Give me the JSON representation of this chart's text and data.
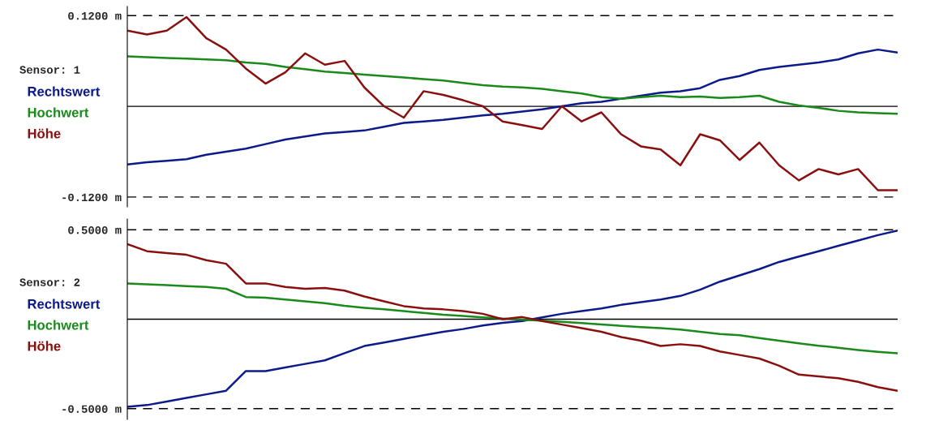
{
  "chart_data": [
    {
      "type": "line",
      "title": "Sensor: 1",
      "categories": [
        null,
        null,
        null,
        null,
        null,
        null,
        null,
        null,
        null,
        null,
        null,
        null,
        null,
        null,
        null,
        null,
        null,
        null,
        null,
        null,
        null,
        null,
        null,
        null,
        null,
        null,
        null,
        null,
        null,
        null,
        null,
        null,
        null,
        null,
        null,
        null,
        null,
        null,
        null,
        null
      ],
      "ylim": [
        -0.133,
        0.132
      ],
      "yticks": [
        {
          "value": -0.12,
          "label": "-0.1200 m"
        },
        {
          "value": 0.12,
          "label": "0.1200 m"
        }
      ],
      "grid": "y",
      "line_style": "solid",
      "legend": "left",
      "ref_lines": [
        {
          "axis": "y",
          "value": 0,
          "color": "#000000",
          "line_style": "solid"
        }
      ],
      "series": [
        {
          "name": "Rechtswert",
          "color": "#0d1a8a",
          "values": [
            -0.077,
            -0.074,
            -0.072,
            -0.07,
            -0.064,
            -0.06,
            -0.056,
            -0.05,
            -0.044,
            -0.04,
            -0.036,
            -0.034,
            -0.032,
            -0.027,
            -0.022,
            -0.02,
            -0.018,
            -0.015,
            -0.012,
            -0.01,
            -0.007,
            -0.004,
            0.0,
            0.004,
            0.006,
            0.01,
            0.014,
            0.018,
            0.02,
            0.024,
            0.035,
            0.04,
            0.048,
            0.052,
            0.055,
            0.058,
            0.062,
            0.07,
            0.075,
            0.071
          ]
        },
        {
          "name": "Hochwert",
          "color": "#1a8a1a",
          "values": [
            0.066,
            0.065,
            0.064,
            0.063,
            0.062,
            0.061,
            0.058,
            0.056,
            0.052,
            0.049,
            0.046,
            0.044,
            0.042,
            0.04,
            0.038,
            0.036,
            0.034,
            0.031,
            0.028,
            0.026,
            0.025,
            0.023,
            0.02,
            0.017,
            0.012,
            0.01,
            0.012,
            0.014,
            0.012,
            0.013,
            0.011,
            0.012,
            0.014,
            0.006,
            0.001,
            -0.002,
            -0.006,
            -0.008,
            -0.009,
            -0.01
          ]
        },
        {
          "name": "Höhe",
          "color": "#8a1010",
          "values": [
            0.1,
            0.095,
            0.1,
            0.118,
            0.09,
            0.075,
            0.05,
            0.03,
            0.045,
            0.07,
            0.055,
            0.06,
            0.025,
            0.0,
            -0.015,
            0.02,
            0.015,
            0.008,
            0.0,
            -0.02,
            -0.025,
            -0.03,
            0.0,
            -0.02,
            -0.008,
            -0.037,
            -0.053,
            -0.057,
            -0.078,
            -0.037,
            -0.045,
            -0.071,
            -0.048,
            -0.078,
            -0.098,
            -0.083,
            -0.09,
            -0.083,
            -0.111,
            -0.111
          ]
        }
      ]
    },
    {
      "type": "line",
      "title": "Sensor: 2",
      "categories": [
        null,
        null,
        null,
        null,
        null,
        null,
        null,
        null,
        null,
        null,
        null,
        null,
        null,
        null,
        null,
        null,
        null,
        null,
        null,
        null,
        null,
        null,
        null,
        null,
        null,
        null,
        null,
        null,
        null,
        null,
        null,
        null,
        null,
        null,
        null,
        null,
        null,
        null,
        null,
        null
      ],
      "ylim": [
        -0.56,
        0.56
      ],
      "yticks": [
        {
          "value": -0.5,
          "label": "-0.5000 m"
        },
        {
          "value": 0.5,
          "label": "0.5000 m"
        }
      ],
      "grid": "y",
      "line_style": "solid",
      "legend": "left",
      "ref_lines": [
        {
          "axis": "y",
          "value": 0,
          "color": "#000000",
          "line_style": "solid"
        }
      ],
      "series": [
        {
          "name": "Rechtswert",
          "color": "#0d1a8a",
          "values": [
            -0.49,
            -0.48,
            -0.46,
            -0.44,
            -0.42,
            -0.4,
            -0.29,
            -0.29,
            -0.27,
            -0.25,
            -0.23,
            -0.19,
            -0.15,
            -0.13,
            -0.11,
            -0.09,
            -0.07,
            -0.055,
            -0.035,
            -0.02,
            -0.01,
            0.01,
            0.03,
            0.045,
            0.06,
            0.08,
            0.095,
            0.11,
            0.13,
            0.165,
            0.21,
            0.245,
            0.28,
            0.32,
            0.35,
            0.38,
            0.41,
            0.44,
            0.47,
            0.495
          ]
        },
        {
          "name": "Hochwert",
          "color": "#1a8a1a",
          "values": [
            0.2,
            0.195,
            0.19,
            0.185,
            0.18,
            0.17,
            0.124,
            0.12,
            0.11,
            0.1,
            0.09,
            0.075,
            0.064,
            0.055,
            0.045,
            0.035,
            0.025,
            0.018,
            0.01,
            0.003,
            -0.003,
            -0.008,
            -0.015,
            -0.022,
            -0.03,
            -0.037,
            -0.044,
            -0.05,
            -0.058,
            -0.07,
            -0.083,
            -0.09,
            -0.105,
            -0.12,
            -0.135,
            -0.148,
            -0.16,
            -0.172,
            -0.182,
            -0.19
          ]
        },
        {
          "name": "Höhe",
          "color": "#8a1010",
          "values": [
            0.42,
            0.38,
            0.37,
            0.36,
            0.33,
            0.31,
            0.2,
            0.2,
            0.18,
            0.17,
            0.175,
            0.16,
            0.127,
            0.1,
            0.073,
            0.06,
            0.055,
            0.045,
            0.03,
            0.0,
            0.012,
            -0.01,
            -0.03,
            -0.05,
            -0.07,
            -0.1,
            -0.12,
            -0.15,
            -0.14,
            -0.15,
            -0.18,
            -0.2,
            -0.22,
            -0.26,
            -0.31,
            -0.32,
            -0.33,
            -0.35,
            -0.38,
            -0.4
          ]
        }
      ]
    }
  ]
}
